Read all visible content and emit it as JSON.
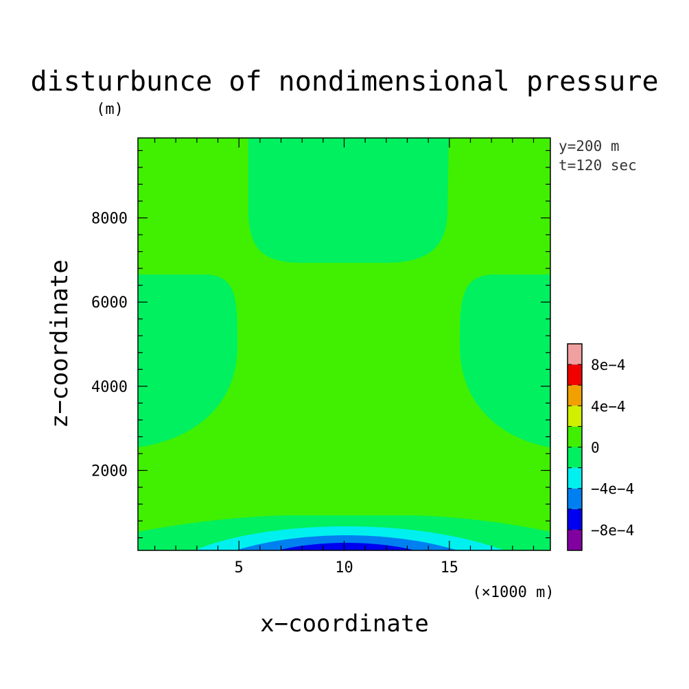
{
  "chart_data": {
    "type": "heatmap",
    "title": "disturbunce of nondimensional pressure",
    "xlabel": "x−coordinate",
    "ylabel": "z−coordinate",
    "x_unit": "(×1000 m)",
    "y_unit": "(m)",
    "annotations": [
      "y=200 m",
      "t=120 sec"
    ],
    "xlim": [
      0.2,
      19.8
    ],
    "ylim": [
      100,
      9900
    ],
    "x_ticks": [
      {
        "value": 5,
        "label": "5"
      },
      {
        "value": 10,
        "label": "10"
      },
      {
        "value": 15,
        "label": "15"
      }
    ],
    "y_ticks": [
      {
        "value": 2000,
        "label": "2000"
      },
      {
        "value": 4000,
        "label": "4000"
      },
      {
        "value": 6000,
        "label": "6000"
      },
      {
        "value": 8000,
        "label": "8000"
      }
    ],
    "x_minor_step": 1,
    "y_minor_step": 400,
    "colorbar": {
      "levels": [
        -0.001,
        -0.0008,
        -0.0006,
        -0.0004,
        -0.0002,
        0,
        0.0002,
        0.0004,
        0.0006,
        0.0008,
        0.001
      ],
      "colors": [
        "#8000a0",
        "#0000f0",
        "#0080f0",
        "#00f0f0",
        "#00f060",
        "#40f000",
        "#d0f000",
        "#f0a000",
        "#f00000",
        "#f0a0a0"
      ],
      "tick_labels": [
        {
          "value": -0.0008,
          "label": "−8e−4"
        },
        {
          "value": -0.0004,
          "label": "−4e−4"
        },
        {
          "value": 0,
          "label": "0"
        },
        {
          "value": 0.0004,
          "label": "4e−4"
        },
        {
          "value": 0.0008,
          "label": "8e−4"
        }
      ]
    },
    "field_regions": [
      {
        "name": "background",
        "range": [
          0,
          0.0002
        ],
        "color": "#40f000"
      },
      {
        "name": "upper-center-lobe",
        "range": [
          -0.0002,
          0
        ],
        "color": "#00f060"
      },
      {
        "name": "left-middle-lobe",
        "range": [
          -0.0002,
          0
        ],
        "color": "#00f060"
      },
      {
        "name": "right-middle-lobe",
        "range": [
          -0.0002,
          0
        ],
        "color": "#00f060"
      },
      {
        "name": "bottom-lobe-1",
        "range": [
          -0.0002,
          0
        ],
        "color": "#00f060"
      },
      {
        "name": "bottom-lobe-2",
        "range": [
          -0.0004,
          -0.0002
        ],
        "color": "#00f0f0"
      },
      {
        "name": "bottom-lobe-3",
        "range": [
          -0.0006,
          -0.0004
        ],
        "color": "#0080f0"
      },
      {
        "name": "bottom-lobe-4",
        "range": [
          -0.0008,
          -0.0006
        ],
        "color": "#0000f0"
      }
    ]
  }
}
